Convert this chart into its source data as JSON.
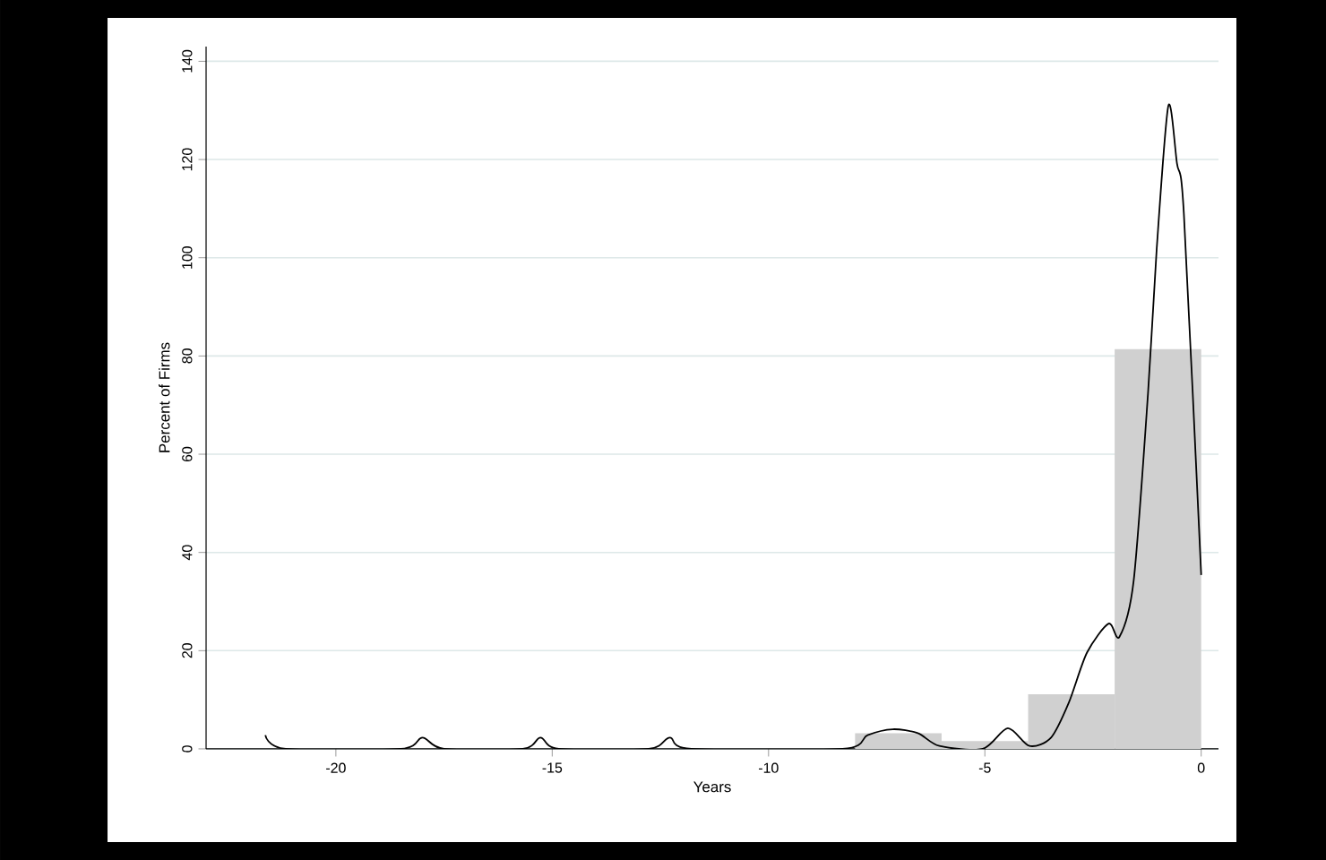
{
  "chart_data": {
    "type": "histogram",
    "xlabel": "Years",
    "ylabel": "Percent of Firms",
    "xlim": [
      -23,
      0.4
    ],
    "ylim": [
      0,
      143
    ],
    "xticks": [
      -20,
      -15,
      -10,
      -5,
      0
    ],
    "yticks": [
      0,
      20,
      40,
      60,
      80,
      100,
      120,
      140
    ],
    "grid": "y",
    "series": [
      {
        "type": "histogram",
        "color": "#d0d0d0",
        "bins": [
          -8,
          -6,
          -4,
          -2,
          0
        ],
        "values": [
          3.2,
          1.6,
          11.1,
          81.4
        ]
      },
      {
        "type": "line",
        "color": "#000000",
        "x": [
          -21.63,
          -21.16,
          -18.5,
          -18.0,
          -17.5,
          -15.68,
          -15.27,
          -14.85,
          -12.77,
          -12.28,
          -11.78,
          -8.29,
          -7.71,
          -7.13,
          -6.55,
          -6.05,
          -5.05,
          -4.47,
          -3.97,
          -3.47,
          -3.06,
          -2.64,
          -2.14,
          -1.89,
          -1.56,
          -1.23,
          -1.03,
          -0.76,
          -0.56,
          -0.4,
          0
        ],
        "values": [
          2.8,
          0,
          0,
          2.3,
          0,
          0,
          2.3,
          0,
          0,
          2.3,
          0,
          0,
          2.8,
          4,
          3.2,
          0.6,
          0,
          4.2,
          0.6,
          2.3,
          9.4,
          19.6,
          25.5,
          22.8,
          34.3,
          72.3,
          101.6,
          130.9,
          119.2,
          108.9,
          35.4
        ]
      }
    ]
  }
}
